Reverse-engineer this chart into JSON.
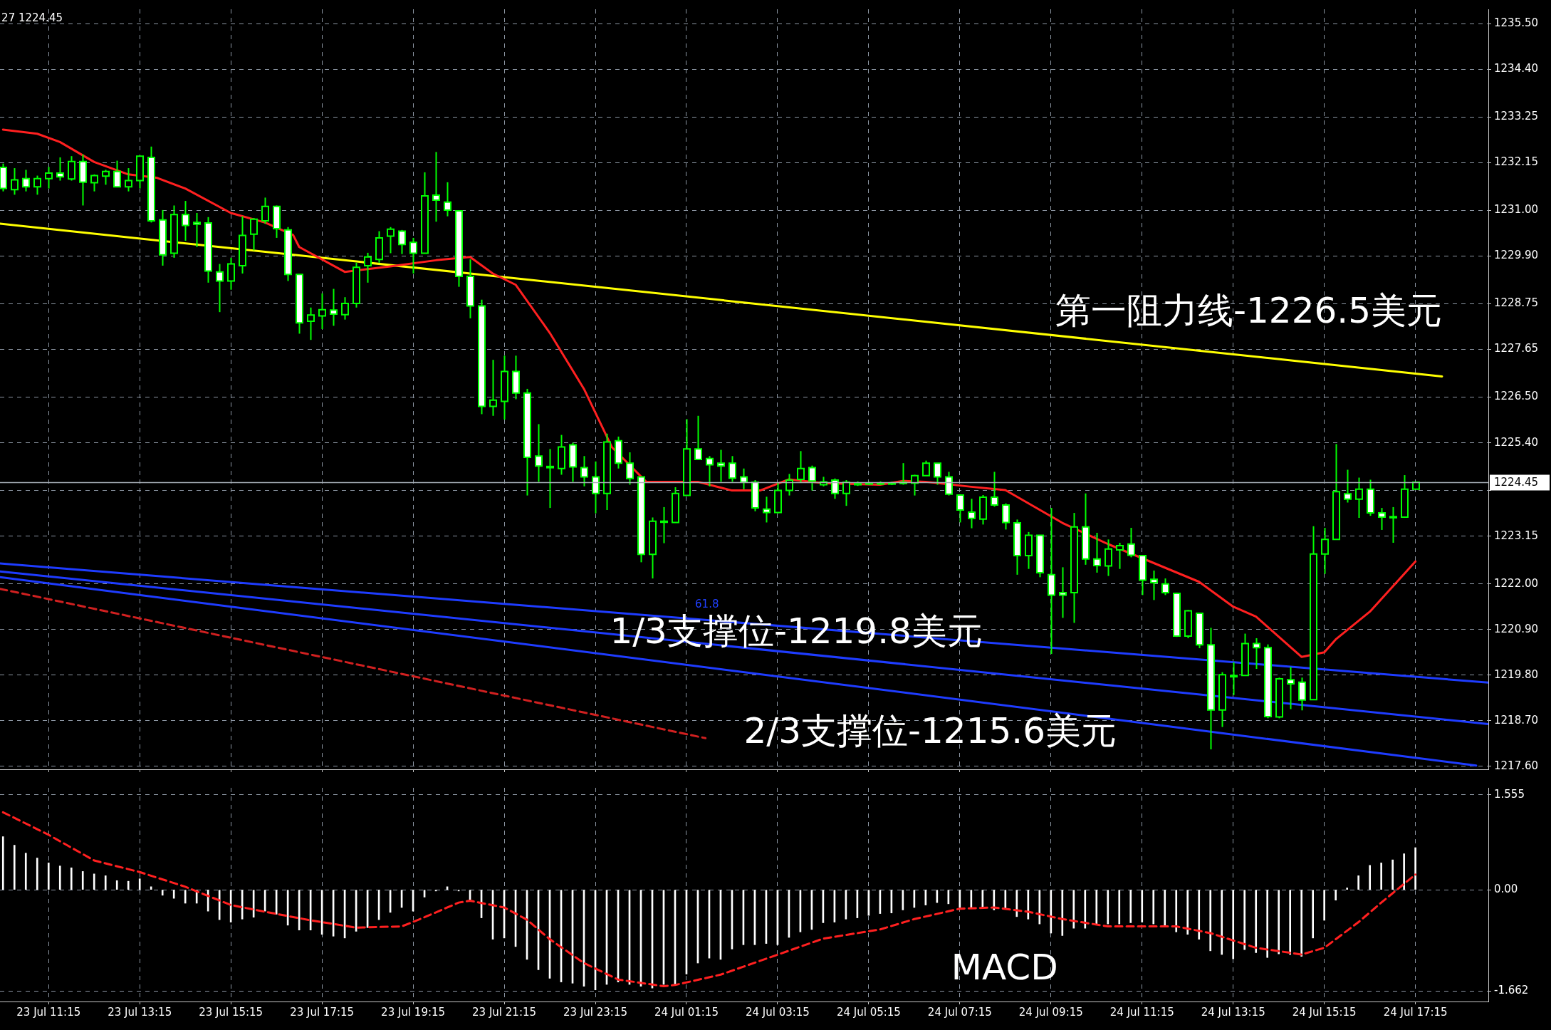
{
  "chart_data": [
    {
      "type": "candlestick",
      "colors": [
        "#ffffff",
        "#000000",
        "#ffffff",
        "#000000",
        "#000000",
        "#ffffff",
        "#000000",
        "#ffffff",
        "#000000",
        "#000000",
        "#ffffff",
        "#000000",
        "#000000",
        "#ffffff",
        "#ffffff",
        "#000000",
        "#ffffff",
        "#ffffff",
        "#ffffff",
        "#ffffff",
        "#000000",
        "#000000",
        "#000000",
        "#000000",
        "#ffffff",
        "#ffffff",
        "#ffffff",
        "#000000",
        "#000000",
        "#ffffff",
        "#000000",
        "#000000",
        "#000000",
        "#000000",
        "#000000",
        "#ffffff",
        "#ffffff",
        "#000000",
        "#ffffff",
        "#ffffff",
        "#ffffff",
        "#ffffff",
        "#ffffff",
        "#000000",
        "#000000",
        "#ffffff",
        "#ffffff",
        "#ffffff",
        "#ffffff",
        "#000000",
        "#ffffff",
        "#ffffff",
        "#ffffff",
        "#000000",
        "#ffffff",
        "#ffffff",
        "#ffffff",
        "#000000",
        "#000000",
        "#000000",
        "#000000",
        "#ffffff",
        "#ffffff",
        "#ffffff",
        "#ffffff",
        "#ffffff",
        "#ffffff",
        "#ffffff",
        "#000000",
        "#000000",
        "#000000",
        "#ffffff",
        "#000000",
        "#ffffff",
        "#000000",
        "#000000",
        "#000000",
        "#000000",
        "#000000",
        "#000000",
        "#000000",
        "#000000",
        "#ffffff",
        "#ffffff",
        "#ffffff",
        "#ffffff",
        "#000000",
        "#ffffff",
        "#ffffff",
        "#ffffff",
        "#000000",
        "#ffffff",
        "#ffffff",
        "#ffffff",
        "#000000",
        "#ffffff",
        "#ffffff",
        "#000000",
        "#000000",
        "#ffffff",
        "#ffffff",
        "#ffffff",
        "#ffffff",
        "#ffffff",
        "#000000",
        "#ffffff",
        "#ffffff",
        "#000000",
        "#ffffff",
        "#000000",
        "#ffffff",
        "#ffffff",
        "#000000",
        "#ffffff",
        "#ffffff",
        "#000000",
        "#000000",
        "#000000",
        "#ffffff",
        "#000000",
        "#ffffff",
        "#ffffff",
        "#ffffff",
        "#000000",
        "#000000"
      ],
      "x": [
        "--07-23T10:15",
        "--07-23T10:30",
        "--07-23T10:45",
        "--07-23T11:00",
        "--07-23T11:15",
        "--07-23T11:30",
        "--07-23T11:45",
        "--07-23T12:00",
        "--07-23T12:15",
        "--07-23T12:30",
        "--07-23T12:45",
        "--07-23T13:00",
        "--07-23T13:15",
        "--07-23T13:30",
        "--07-23T13:45",
        "--07-23T14:00",
        "--07-23T14:15",
        "--07-23T14:30",
        "--07-23T14:45",
        "--07-23T15:00",
        "--07-23T15:15",
        "--07-23T15:30",
        "--07-23T15:45",
        "--07-23T16:00",
        "--07-23T16:15",
        "--07-23T16:30",
        "--07-23T16:45",
        "--07-23T17:00",
        "--07-23T17:15",
        "--07-23T17:30",
        "--07-23T17:45",
        "--07-23T18:00",
        "--07-23T18:15",
        "--07-23T18:30",
        "--07-23T18:45",
        "--07-23T19:00",
        "--07-23T19:15",
        "--07-23T19:30",
        "--07-23T19:45",
        "--07-23T20:00",
        "--07-23T20:15",
        "--07-23T20:30",
        "--07-23T20:45",
        "--07-23T21:00",
        "--07-23T21:15",
        "--07-23T21:30",
        "--07-23T21:45",
        "--07-23T22:00",
        "--07-23T22:15",
        "--07-23T22:30",
        "--07-23T22:45",
        "--07-23T23:00",
        "--07-23T23:15",
        "--07-23T23:30",
        "--07-23T23:45",
        "--07-24T00:00",
        "--07-24T00:15",
        "--07-24T00:30",
        "--07-24T00:45",
        "--07-24T01:00",
        "--07-24T01:15",
        "--07-24T01:30",
        "--07-24T01:45",
        "--07-24T02:00",
        "--07-24T02:15",
        "--07-24T02:30",
        "--07-24T02:45",
        "--07-24T03:00",
        "--07-24T03:15",
        "--07-24T03:30",
        "--07-24T03:45",
        "--07-24T04:00",
        "--07-24T04:15",
        "--07-24T04:30",
        "--07-24T04:45",
        "--07-24T05:00",
        "--07-24T05:15",
        "--07-24T05:30",
        "--07-24T05:45",
        "--07-24T06:00",
        "--07-24T06:15",
        "--07-24T06:30",
        "--07-24T06:45",
        "--07-24T07:00",
        "--07-24T07:15",
        "--07-24T07:30",
        "--07-24T07:45",
        "--07-24T08:00",
        "--07-24T08:15",
        "--07-24T08:30",
        "--07-24T08:45",
        "--07-24T09:00",
        "--07-24T09:15",
        "--07-24T09:30",
        "--07-24T09:45",
        "--07-24T10:00",
        "--07-24T10:15",
        "--07-24T10:30",
        "--07-24T10:45",
        "--07-24T11:00",
        "--07-24T11:15",
        "--07-24T11:30",
        "--07-24T11:45",
        "--07-24T12:00",
        "--07-24T12:15",
        "--07-24T12:30",
        "--07-24T12:45",
        "--07-24T13:00",
        "--07-24T13:15",
        "--07-24T13:30",
        "--07-24T13:45",
        "--07-24T14:00",
        "--07-24T14:15",
        "--07-24T14:30",
        "--07-24T14:45",
        "--07-24T15:00",
        "--07-24T15:15",
        "--07-24T15:30",
        "--07-24T15:45",
        "--07-24T16:00",
        "--07-24T16:15",
        "--07-24T16:30",
        "--07-24T16:45",
        "--07-24T17:00",
        "--07-24T17:15"
      ],
      "ohlc": [
        [
          1232.04,
          1232.13,
          1231.46,
          1231.53
        ],
        [
          1231.5,
          1232.02,
          1231.38,
          1231.74
        ],
        [
          1231.77,
          1231.98,
          1231.46,
          1231.57
        ],
        [
          1231.57,
          1231.84,
          1231.38,
          1231.77
        ],
        [
          1231.77,
          1232.05,
          1231.53,
          1231.9
        ],
        [
          1231.9,
          1232.28,
          1231.72,
          1231.81
        ],
        [
          1231.76,
          1232.31,
          1231.72,
          1232.18
        ],
        [
          1232.18,
          1232.35,
          1231.12,
          1231.68
        ],
        [
          1231.67,
          1231.87,
          1231.46,
          1231.84
        ],
        [
          1231.83,
          1231.98,
          1231.62,
          1231.94
        ],
        [
          1231.94,
          1232.2,
          1231.57,
          1231.57
        ],
        [
          1231.57,
          1232.02,
          1231.46,
          1231.72
        ],
        [
          1231.72,
          1232.31,
          1231.53,
          1232.31
        ],
        [
          1232.28,
          1232.54,
          1230.71,
          1230.75
        ],
        [
          1230.77,
          1231.01,
          1229.67,
          1229.93
        ],
        [
          1229.97,
          1231.12,
          1229.86,
          1230.9
        ],
        [
          1230.9,
          1231.23,
          1230.27,
          1230.64
        ],
        [
          1230.71,
          1230.94,
          1230.12,
          1230.67
        ],
        [
          1230.7,
          1230.84,
          1229.26,
          1229.54
        ],
        [
          1229.52,
          1229.71,
          1228.55,
          1229.3
        ],
        [
          1229.3,
          1229.86,
          1229.09,
          1229.71
        ],
        [
          1229.67,
          1230.86,
          1229.48,
          1230.4
        ],
        [
          1230.43,
          1230.82,
          1230.04,
          1230.79
        ],
        [
          1230.75,
          1231.31,
          1230.68,
          1231.1
        ],
        [
          1231.1,
          1231.12,
          1230.34,
          1230.56
        ],
        [
          1230.53,
          1230.6,
          1229.3,
          1229.46
        ],
        [
          1229.46,
          1229.46,
          1228.03,
          1228.29
        ],
        [
          1228.33,
          1228.66,
          1227.88,
          1228.48
        ],
        [
          1228.46,
          1229.0,
          1228.14,
          1228.61
        ],
        [
          1228.6,
          1229.11,
          1228.22,
          1228.5
        ],
        [
          1228.49,
          1228.91,
          1228.37,
          1228.76
        ],
        [
          1228.76,
          1229.74,
          1228.66,
          1229.63
        ],
        [
          1229.67,
          1229.98,
          1229.26,
          1229.88
        ],
        [
          1229.82,
          1230.5,
          1229.74,
          1230.34
        ],
        [
          1230.38,
          1230.6,
          1229.97,
          1230.55
        ],
        [
          1230.5,
          1230.53,
          1229.95,
          1230.18
        ],
        [
          1230.23,
          1230.34,
          1229.48,
          1229.97
        ],
        [
          1229.97,
          1231.92,
          1229.97,
          1231.35
        ],
        [
          1231.37,
          1232.41,
          1230.73,
          1231.25
        ],
        [
          1231.2,
          1231.68,
          1230.86,
          1231.01
        ],
        [
          1230.99,
          1230.99,
          1229.16,
          1229.41
        ],
        [
          1229.41,
          1229.82,
          1228.4,
          1228.7
        ],
        [
          1228.7,
          1228.85,
          1226.09,
          1226.28
        ],
        [
          1226.28,
          1227.4,
          1226.05,
          1226.43
        ],
        [
          1226.4,
          1227.5,
          1225.96,
          1227.12
        ],
        [
          1227.12,
          1227.5,
          1226.45,
          1226.6
        ],
        [
          1226.6,
          1226.7,
          1224.13,
          1225.05
        ],
        [
          1225.08,
          1225.85,
          1224.46,
          1224.84
        ],
        [
          1224.83,
          1225.25,
          1223.83,
          1224.8
        ],
        [
          1224.78,
          1225.59,
          1224.63,
          1225.3
        ],
        [
          1225.35,
          1225.4,
          1224.46,
          1224.82
        ],
        [
          1224.8,
          1225.08,
          1224.35,
          1224.58
        ],
        [
          1224.58,
          1224.95,
          1223.7,
          1224.18
        ],
        [
          1224.18,
          1225.62,
          1223.78,
          1225.42
        ],
        [
          1225.45,
          1225.55,
          1224.78,
          1224.91
        ],
        [
          1224.91,
          1225.17,
          1224.39,
          1224.54
        ],
        [
          1224.58,
          1224.58,
          1222.52,
          1222.71
        ],
        [
          1222.71,
          1223.6,
          1222.13,
          1223.51
        ],
        [
          1223.5,
          1223.85,
          1222.98,
          1223.51
        ],
        [
          1223.48,
          1224.33,
          1223.48,
          1224.18
        ],
        [
          1224.13,
          1225.97,
          1224.13,
          1225.25
        ],
        [
          1225.25,
          1226.05,
          1225.0,
          1225.0
        ],
        [
          1225.02,
          1225.08,
          1224.35,
          1224.87
        ],
        [
          1224.91,
          1225.23,
          1224.46,
          1224.84
        ],
        [
          1224.91,
          1225.08,
          1224.46,
          1224.55
        ],
        [
          1224.58,
          1224.78,
          1224.28,
          1224.45
        ],
        [
          1224.45,
          1224.5,
          1223.75,
          1223.83
        ],
        [
          1223.8,
          1224.1,
          1223.48,
          1223.72
        ],
        [
          1223.72,
          1224.45,
          1223.7,
          1224.25
        ],
        [
          1224.25,
          1224.65,
          1224.13,
          1224.5
        ],
        [
          1224.52,
          1225.2,
          1224.45,
          1224.78
        ],
        [
          1224.8,
          1224.85,
          1224.25,
          1224.48
        ],
        [
          1224.39,
          1224.58,
          1224.35,
          1224.46
        ],
        [
          1224.5,
          1224.54,
          1224.05,
          1224.18
        ],
        [
          1224.18,
          1224.5,
          1223.88,
          1224.45
        ],
        [
          1224.39,
          1224.47,
          1224.36,
          1224.43
        ],
        [
          1224.41,
          1224.46,
          1224.38,
          1224.43
        ],
        [
          1224.42,
          1224.47,
          1224.38,
          1224.43
        ],
        [
          1224.41,
          1224.46,
          1224.38,
          1224.43
        ],
        [
          1224.42,
          1224.91,
          1224.39,
          1224.45
        ],
        [
          1224.43,
          1224.63,
          1224.13,
          1224.61
        ],
        [
          1224.61,
          1224.97,
          1224.6,
          1224.91
        ],
        [
          1224.91,
          1224.91,
          1224.39,
          1224.58
        ],
        [
          1224.58,
          1224.7,
          1224.13,
          1224.16
        ],
        [
          1224.14,
          1224.16,
          1223.48,
          1223.78
        ],
        [
          1223.73,
          1224.05,
          1223.34,
          1223.58
        ],
        [
          1223.56,
          1224.14,
          1223.43,
          1224.09
        ],
        [
          1224.09,
          1224.7,
          1223.86,
          1223.9
        ],
        [
          1223.9,
          1223.94,
          1223.31,
          1223.48
        ],
        [
          1223.47,
          1223.55,
          1222.22,
          1222.68
        ],
        [
          1222.68,
          1223.25,
          1222.36,
          1223.17
        ],
        [
          1223.17,
          1223.17,
          1222.16,
          1222.27
        ],
        [
          1222.22,
          1223.83,
          1220.31,
          1221.73
        ],
        [
          1221.79,
          1222.4,
          1221.18,
          1221.73
        ],
        [
          1221.79,
          1223.71,
          1221.06,
          1223.37
        ],
        [
          1223.37,
          1224.18,
          1222.46,
          1222.6
        ],
        [
          1222.6,
          1223.23,
          1222.27,
          1222.44
        ],
        [
          1222.43,
          1223.07,
          1222.19,
          1222.84
        ],
        [
          1222.82,
          1222.99,
          1222.36,
          1222.92
        ],
        [
          1222.96,
          1223.35,
          1222.64,
          1222.69
        ],
        [
          1222.68,
          1222.68,
          1221.73,
          1222.09
        ],
        [
          1222.11,
          1222.32,
          1221.61,
          1222.03
        ],
        [
          1222.0,
          1222.13,
          1221.73,
          1221.79
        ],
        [
          1221.77,
          1221.79,
          1220.72,
          1220.74
        ],
        [
          1220.74,
          1221.37,
          1220.69,
          1221.35
        ],
        [
          1221.29,
          1221.29,
          1220.45,
          1220.53
        ],
        [
          1220.53,
          1220.94,
          1218.01,
          1218.96
        ],
        [
          1218.96,
          1219.87,
          1218.55,
          1219.81
        ],
        [
          1219.79,
          1220.11,
          1219.32,
          1219.76
        ],
        [
          1219.79,
          1220.8,
          1219.79,
          1220.56
        ],
        [
          1220.56,
          1220.69,
          1219.95,
          1220.46
        ],
        [
          1220.46,
          1220.54,
          1218.76,
          1218.8
        ],
        [
          1218.79,
          1219.74,
          1218.76,
          1219.71
        ],
        [
          1219.69,
          1220.0,
          1218.98,
          1219.59
        ],
        [
          1219.63,
          1219.74,
          1218.95,
          1219.2
        ],
        [
          1219.21,
          1223.39,
          1219.21,
          1222.72
        ],
        [
          1222.72,
          1223.35,
          1222.24,
          1223.07
        ],
        [
          1223.07,
          1225.37,
          1223.07,
          1224.22
        ],
        [
          1224.17,
          1224.75,
          1223.96,
          1224.04
        ],
        [
          1224.04,
          1224.56,
          1223.59,
          1224.28
        ],
        [
          1224.28,
          1224.51,
          1223.64,
          1223.71
        ],
        [
          1223.71,
          1223.83,
          1223.3,
          1223.61
        ],
        [
          1223.62,
          1223.85,
          1222.99,
          1223.61
        ],
        [
          1223.61,
          1224.62,
          1223.61,
          1224.28
        ],
        [
          1224.28,
          1224.46,
          1224.28,
          1224.45
        ]
      ],
      "series": [
        {
          "type": "line",
          "color": "#ff2020",
          "x": [
            "--07-23T10:15",
            "--07-23T11:00",
            "--07-23T11:30",
            "--07-23T12:15",
            "--07-23T13:00",
            "--07-23T13:37",
            "--07-23T14:15",
            "--07-23T15:15",
            "--07-23T16:00",
            "--07-23T16:37",
            "--07-23T16:45",
            "--07-23T17:45",
            "--07-23T18:45",
            "--07-23T19:45",
            "--07-23T20:30",
            "--07-23T21:00",
            "--07-23T21:30",
            "--07-23T22:15",
            "--07-23T23:00",
            "--07-23T23:37",
            "--07-24T00:22",
            "--07-24T01:30",
            "--07-24T02:15",
            "--07-24T02:52",
            "--07-24T03:30",
            "--07-24T04:15",
            "--07-24T05:30",
            "--07-24T06:00",
            "--07-24T06:30",
            "--07-24T07:30",
            "--07-24T08:15",
            "--07-24T09:30",
            "--07-24T10:30",
            "--07-24T12:30",
            "--07-24T13:15",
            "--07-24T13:45",
            "--07-24T14:45",
            "--07-24T15:15",
            "--07-24T15:30",
            "--07-24T16:15",
            "--07-24T17:15"
          ],
          "values": [
            1232.95,
            1232.85,
            1232.65,
            1232.17,
            1231.87,
            1231.79,
            1231.53,
            1230.94,
            1230.71,
            1230.41,
            1230.12,
            1229.52,
            1229.65,
            1229.8,
            1229.88,
            1229.48,
            1229.21,
            1228.05,
            1226.7,
            1225.29,
            1224.46,
            1224.46,
            1224.25,
            1224.25,
            1224.52,
            1224.43,
            1224.39,
            1224.48,
            1224.46,
            1224.34,
            1224.26,
            1223.47,
            1222.96,
            1222.05,
            1221.45,
            1221.21,
            1220.24,
            1220.35,
            1220.66,
            1221.33,
            1222.54
          ]
        },
        {
          "type": "line",
          "color": "#ffff00",
          "x": [
            "--07-23T10:11",
            "--07-24T17:50"
          ],
          "values": [
            1230.68,
            1227.0
          ]
        },
        {
          "type": "line",
          "color": "#1e3cff",
          "x": [
            "--07-23T10:11",
            "--07-24T18:51"
          ],
          "values": [
            1222.49,
            1219.62
          ]
        },
        {
          "type": "line",
          "color": "#1e3cff",
          "x": [
            "--07-23T10:11",
            "--07-24T18:51"
          ],
          "values": [
            1222.3,
            1218.62
          ]
        },
        {
          "type": "line",
          "color": "#1e3cff",
          "x": [
            "--07-23T10:11",
            "--07-24T18:35"
          ],
          "values": [
            1222.16,
            1217.62
          ]
        },
        {
          "type": "line",
          "color": "#d02020",
          "line_style": "dashed",
          "x": [
            "--07-23T10:11",
            "--07-24T01:40"
          ],
          "values": [
            1221.88,
            1218.28
          ]
        }
      ],
      "xlim": [
        "--07-23T10:11",
        "--07-24T18:51"
      ],
      "xticks": [
        {
          "value": "--07-23T11:15",
          "label": null
        },
        {
          "value": "--07-23T13:15",
          "label": null
        },
        {
          "value": "--07-23T15:15",
          "label": null
        },
        {
          "value": "--07-23T17:15",
          "label": null
        },
        {
          "value": "--07-23T19:15",
          "label": null
        },
        {
          "value": "--07-23T21:15",
          "label": null
        },
        {
          "value": "--07-23T23:15",
          "label": null
        },
        {
          "value": "--07-24T01:15",
          "label": null
        },
        {
          "value": "--07-24T03:15",
          "label": null
        },
        {
          "value": "--07-24T05:15",
          "label": null
        },
        {
          "value": "--07-24T07:15",
          "label": null
        },
        {
          "value": "--07-24T09:15",
          "label": null
        },
        {
          "value": "--07-24T11:15",
          "label": null
        },
        {
          "value": "--07-24T13:15",
          "label": null
        },
        {
          "value": "--07-24T15:15",
          "label": null
        },
        {
          "value": "--07-24T17:15",
          "label": null
        }
      ],
      "ylim": [
        1217.53,
        1235.85
      ],
      "yticks": [
        {
          "value": 1217.6,
          "label": "1217.60"
        },
        {
          "value": 1218.7,
          "label": "1218.70"
        },
        {
          "value": 1219.8,
          "label": "1219.80"
        },
        {
          "value": 1220.9,
          "label": "1220.90"
        },
        {
          "value": 1222,
          "label": "1222.00"
        },
        1223.15,
        {
          "value": 1224.25,
          "label": null
        },
        {
          "value": 1225.4,
          "label": "1225.40"
        },
        {
          "value": 1226.5,
          "label": "1226.50"
        },
        1227.65,
        1228.75,
        {
          "value": 1229.9,
          "label": "1229.90"
        },
        {
          "value": 1231,
          "label": "1231.00"
        },
        1232.15,
        1233.25,
        {
          "value": 1234.4,
          "label": "1234.40"
        },
        {
          "value": 1235.5,
          "label": "1235.50"
        }
      ],
      "tick_labels": "y",
      "grid": true,
      "ref_lines": [
        {
          "axis": "y",
          "value": 1224.45,
          "label": "1224.45",
          "color": "#a8b0b8"
        }
      ],
      "annotations": [
        "27 1224.45",
        "第一阻力线-1226.5美元",
        "1/3支撑位-1219.8美元",
        "2/3支撑位-1215.6美元",
        "61.8"
      ]
    },
    {
      "type": "bar",
      "x": [
        "--07-23T10:15",
        "--07-23T10:30",
        "--07-23T10:45",
        "--07-23T11:00",
        "--07-23T11:15",
        "--07-23T11:30",
        "--07-23T11:45",
        "--07-23T12:00",
        "--07-23T12:15",
        "--07-23T12:30",
        "--07-23T12:45",
        "--07-23T13:00",
        "--07-23T13:15",
        "--07-23T13:30",
        "--07-23T13:45",
        "--07-23T14:00",
        "--07-23T14:15",
        "--07-23T14:30",
        "--07-23T14:45",
        "--07-23T15:00",
        "--07-23T15:15",
        "--07-23T15:30",
        "--07-23T15:45",
        "--07-23T16:00",
        "--07-23T16:15",
        "--07-23T16:30",
        "--07-23T16:45",
        "--07-23T17:00",
        "--07-23T17:15",
        "--07-23T17:30",
        "--07-23T17:45",
        "--07-23T18:00",
        "--07-23T18:15",
        "--07-23T18:30",
        "--07-23T18:45",
        "--07-23T19:00",
        "--07-23T19:15",
        "--07-23T19:30",
        "--07-23T19:45",
        "--07-23T20:00",
        "--07-23T20:15",
        "--07-23T20:30",
        "--07-23T20:45",
        "--07-23T21:00",
        "--07-23T21:15",
        "--07-23T21:30",
        "--07-23T21:45",
        "--07-23T22:00",
        "--07-23T22:15",
        "--07-23T22:30",
        "--07-23T22:45",
        "--07-23T23:00",
        "--07-23T23:15",
        "--07-23T23:30",
        "--07-23T23:45",
        "--07-24T00:00",
        "--07-24T00:15",
        "--07-24T00:30",
        "--07-24T00:45",
        "--07-24T01:00",
        "--07-24T01:15",
        "--07-24T01:30",
        "--07-24T01:45",
        "--07-24T02:00",
        "--07-24T02:15",
        "--07-24T02:30",
        "--07-24T02:45",
        "--07-24T03:00",
        "--07-24T03:15",
        "--07-24T03:30",
        "--07-24T03:45",
        "--07-24T04:00",
        "--07-24T04:15",
        "--07-24T04:30",
        "--07-24T04:45",
        "--07-24T05:00",
        "--07-24T05:15",
        "--07-24T05:30",
        "--07-24T05:45",
        "--07-24T06:00",
        "--07-24T06:15",
        "--07-24T06:30",
        "--07-24T06:45",
        "--07-24T07:00",
        "--07-24T07:15",
        "--07-24T07:30",
        "--07-24T07:45",
        "--07-24T08:00",
        "--07-24T08:15",
        "--07-24T08:30",
        "--07-24T08:45",
        "--07-24T09:00",
        "--07-24T09:15",
        "--07-24T09:30",
        "--07-24T09:45",
        "--07-24T10:00",
        "--07-24T10:15",
        "--07-24T10:30",
        "--07-24T10:45",
        "--07-24T11:00",
        "--07-24T11:15",
        "--07-24T11:30",
        "--07-24T11:45",
        "--07-24T12:00",
        "--07-24T12:15",
        "--07-24T12:30",
        "--07-24T12:45",
        "--07-24T13:00",
        "--07-24T13:15",
        "--07-24T13:30",
        "--07-24T13:45",
        "--07-24T14:00",
        "--07-24T14:15",
        "--07-24T14:30",
        "--07-24T14:45",
        "--07-24T15:00",
        "--07-24T15:15",
        "--07-24T15:30",
        "--07-24T15:45",
        "--07-24T16:00",
        "--07-24T16:15",
        "--07-24T16:30",
        "--07-24T16:45",
        "--07-24T17:00",
        "--07-24T17:15"
      ],
      "series": [
        {
          "color": "#ffffff",
          "values": [
            0.87,
            0.73,
            0.6,
            0.52,
            0.44,
            0.39,
            0.36,
            0.3,
            0.26,
            0.23,
            0.15,
            0.14,
            0.18,
            0.05,
            -0.09,
            -0.14,
            -0.22,
            -0.22,
            -0.35,
            -0.49,
            -0.53,
            -0.48,
            -0.45,
            -0.35,
            -0.4,
            -0.58,
            -0.66,
            -0.66,
            -0.73,
            -0.76,
            -0.79,
            -0.68,
            -0.62,
            -0.49,
            -0.37,
            -0.29,
            -0.35,
            -0.12,
            -0.02,
            0.05,
            -0.02,
            -0.19,
            -0.46,
            -0.81,
            -0.79,
            -0.93,
            -1.14,
            -1.31,
            -1.45,
            -1.51,
            -1.53,
            -1.58,
            -1.64,
            -1.55,
            -1.51,
            -1.55,
            -1.58,
            -1.61,
            -1.55,
            -1.55,
            -1.38,
            -1.2,
            -1.12,
            -1.14,
            -0.97,
            -0.9,
            -0.9,
            -0.88,
            -0.9,
            -0.78,
            -0.69,
            -0.65,
            -0.54,
            -0.53,
            -0.48,
            -0.46,
            -0.42,
            -0.39,
            -0.38,
            -0.33,
            -0.29,
            -0.25,
            -0.21,
            -0.23,
            -0.29,
            -0.31,
            -0.29,
            -0.33,
            -0.32,
            -0.44,
            -0.48,
            -0.56,
            -0.71,
            -0.75,
            -0.63,
            -0.63,
            -0.56,
            -0.56,
            -0.56,
            -0.54,
            -0.53,
            -0.56,
            -0.61,
            -0.69,
            -0.73,
            -0.81,
            -1.0,
            -1.06,
            -1.13,
            -0.98,
            -1.03,
            -1.11,
            -1.05,
            -1.06,
            -1.09,
            -0.79,
            -0.5,
            -0.17,
            0.03,
            0.23,
            0.4,
            0.44,
            0.49,
            0.59,
            0.69
          ]
        },
        {
          "type": "line",
          "color": "#ff2020",
          "line_style": "dashed",
          "x": [
            "--07-23T10:15",
            "--07-23T11:15",
            "--07-23T12:15",
            "--07-23T13:15",
            "--07-23T14:15",
            "--07-23T15:15",
            "--07-23T16:00",
            "--07-23T17:00",
            "--07-23T18:00",
            "--07-23T19:00",
            "--07-23T19:30",
            "--07-23T20:15",
            "--07-23T20:30",
            "--07-23T21:15",
            "--07-23T21:45",
            "--07-23T22:15",
            "--07-23T23:00",
            "--07-23T23:45",
            "--07-24T00:45",
            "--07-24T01:00",
            "--07-24T02:00",
            "--07-24T02:30",
            "--07-24T04:15",
            "--07-24T05:30",
            "--07-24T06:15",
            "--07-24T07:15",
            "--07-24T08:00",
            "--07-24T08:45",
            "--07-24T09:30",
            "--07-24T10:30",
            "--07-24T12:00",
            "--07-24T12:45",
            "--07-24T13:45",
            "--07-24T14:45",
            "--07-24T15:15",
            "--07-24T16:00",
            "--07-24T16:30",
            "--07-24T17:15"
          ],
          "values": [
            1.27,
            0.9,
            0.48,
            0.29,
            0.05,
            -0.25,
            -0.36,
            -0.5,
            -0.62,
            -0.6,
            -0.45,
            -0.21,
            -0.18,
            -0.29,
            -0.49,
            -0.81,
            -1.2,
            -1.47,
            -1.58,
            -1.56,
            -1.39,
            -1.26,
            -0.8,
            -0.65,
            -0.48,
            -0.31,
            -0.29,
            -0.36,
            -0.48,
            -0.6,
            -0.6,
            -0.71,
            -0.95,
            -1.06,
            -0.95,
            -0.53,
            -0.21,
            0.25
          ]
        }
      ],
      "xlim": [
        "--07-23T10:11",
        "--07-24T18:51"
      ],
      "xticks": [
        {
          "value": "--07-23T11:15",
          "label": "23 Jul 11:15"
        },
        {
          "value": "--07-23T13:15",
          "label": "23 Jul 13:15"
        },
        {
          "value": "--07-23T15:15",
          "label": "23 Jul 15:15"
        },
        {
          "value": "--07-23T17:15",
          "label": "23 Jul 17:15"
        },
        {
          "value": "--07-23T19:15",
          "label": "23 Jul 19:15"
        },
        {
          "value": "--07-23T21:15",
          "label": "23 Jul 21:15"
        },
        {
          "value": "--07-23T23:15",
          "label": "23 Jul 23:15"
        },
        {
          "value": "--07-24T01:15",
          "label": "24 Jul 01:15"
        },
        {
          "value": "--07-24T03:15",
          "label": "24 Jul 03:15"
        },
        {
          "value": "--07-24T05:15",
          "label": "24 Jul 05:15"
        },
        {
          "value": "--07-24T07:15",
          "label": "24 Jul 07:15"
        },
        {
          "value": "--07-24T09:15",
          "label": "24 Jul 09:15"
        },
        {
          "value": "--07-24T11:15",
          "label": "24 Jul 11:15"
        },
        {
          "value": "--07-24T13:15",
          "label": "24 Jul 13:15"
        },
        {
          "value": "--07-24T15:15",
          "label": "24 Jul 15:15"
        },
        {
          "value": "--07-24T17:15",
          "label": "24 Jul 17:15"
        }
      ],
      "ylim": [
        -1.83,
        1.67
      ],
      "yticks": [
        -1.662,
        {
          "value": 0,
          "label": "0.00"
        },
        1.555
      ],
      "grid": true,
      "annotations": [
        "MACD"
      ]
    }
  ]
}
